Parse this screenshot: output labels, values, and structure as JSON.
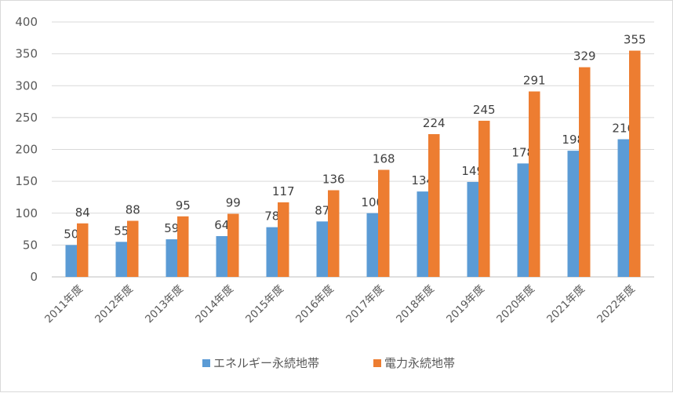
{
  "chart_data": {
    "type": "bar",
    "categories": [
      "2011年度",
      "2012年度",
      "2013年度",
      "2014年度",
      "2015年度",
      "2016年度",
      "2017年度",
      "2018年度",
      "2019年度",
      "2020年度",
      "2021年度",
      "2022年度"
    ],
    "series": [
      {
        "name": "エネルギー永続地帯",
        "color": "#5b9bd5",
        "values": [
          50,
          55,
          59,
          64,
          78,
          87,
          100,
          134,
          149,
          178,
          198,
          216
        ]
      },
      {
        "name": "電力永続地帯",
        "color": "#ed7d31",
        "values": [
          84,
          88,
          95,
          99,
          117,
          136,
          168,
          224,
          245,
          291,
          329,
          355
        ]
      }
    ],
    "ylim": [
      0,
      400
    ],
    "yticks": [
      0,
      50,
      100,
      150,
      200,
      250,
      300,
      350,
      400
    ],
    "grid": true,
    "legend": "bottom",
    "data_labels": true
  }
}
